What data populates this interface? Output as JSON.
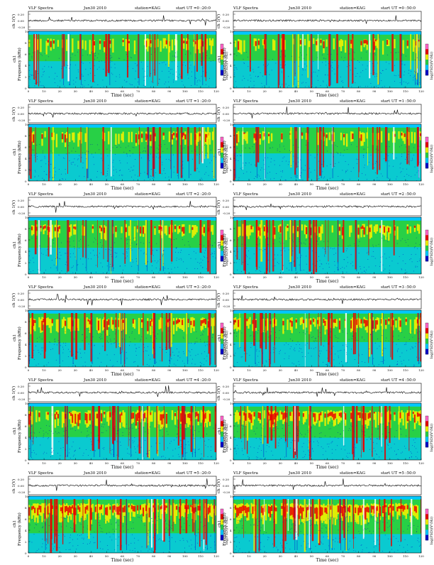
{
  "chart_data": [
    {
      "type": "heatmap",
      "header": {
        "title": "VLF Spectra",
        "date": "Jun30 2010",
        "station": "station=KAG",
        "start": "start  UT =0 :20:0"
      },
      "intensity": 0.42,
      "xlabel": "Time  (sec)",
      "ylabel": "Frequency  (kHz)",
      "waveform_label": "ch 1(V)",
      "channel": "ch1",
      "colorbar_label": "log(PSD)(V²/Hz)",
      "x_ticks": [
        "0",
        "10",
        "20",
        "30",
        "40",
        "50",
        "60",
        "70",
        "80",
        "90",
        "100",
        "110",
        "120"
      ],
      "y_ticks": [
        "0",
        "2",
        "4",
        "6",
        "8",
        "10"
      ],
      "wave_ticks": [
        "0.20",
        "0.00",
        "-0.20"
      ],
      "xlim": [
        0,
        120
      ],
      "ylim": [
        0,
        10
      ]
    },
    {
      "type": "heatmap",
      "header": {
        "title": "VLF Spectra",
        "date": "Jun30 2010",
        "station": "station=KAG",
        "start": "start  UT =0 :50:0"
      },
      "intensity": 0.4,
      "xlabel": "Time  (sec)",
      "ylabel": "Frequency  (kHz)",
      "waveform_label": "ch 1(V)",
      "channel": "ch1",
      "colorbar_label": "log(PSD)(V²/Hz)",
      "x_ticks": [
        "0",
        "10",
        "20",
        "30",
        "40",
        "50",
        "60",
        "70",
        "80",
        "90",
        "100",
        "110",
        "120"
      ],
      "y_ticks": [
        "0",
        "2",
        "4",
        "6",
        "8",
        "10"
      ],
      "wave_ticks": [
        "0.20",
        "0.00",
        "-0.20"
      ],
      "xlim": [
        0,
        120
      ],
      "ylim": [
        0,
        10
      ]
    },
    {
      "type": "heatmap",
      "header": {
        "title": "VLF Spectra",
        "date": "Jun30 2010",
        "station": "station=KAG",
        "start": "start  UT =1 :20:0"
      },
      "intensity": 0.4,
      "xlabel": "Time  (sec)",
      "ylabel": "Frequency  (kHz)",
      "waveform_label": "ch 1(V)",
      "channel": "ch1",
      "colorbar_label": "log(PSD)(V²/Hz)",
      "x_ticks": [
        "0",
        "10",
        "20",
        "30",
        "40",
        "50",
        "60",
        "70",
        "80",
        "90",
        "100",
        "110",
        "120"
      ],
      "y_ticks": [
        "0",
        "2",
        "4",
        "6",
        "8",
        "10"
      ],
      "wave_ticks": [
        "0.20",
        "0.00",
        "-0.20"
      ],
      "xlim": [
        0,
        120
      ],
      "ylim": [
        0,
        10
      ]
    },
    {
      "type": "heatmap",
      "header": {
        "title": "VLF Spectra",
        "date": "Jun30 2010",
        "station": "station=KAG",
        "start": "start  UT =1 :50:0"
      },
      "intensity": 0.38,
      "xlabel": "Time  (sec)",
      "ylabel": "Frequency  (kHz)",
      "waveform_label": "ch 1(V)",
      "channel": "ch1",
      "colorbar_label": "log(PSD)(V²/Hz)",
      "x_ticks": [
        "0",
        "10",
        "20",
        "30",
        "40",
        "50",
        "60",
        "70",
        "80",
        "90",
        "100",
        "110",
        "120"
      ],
      "y_ticks": [
        "0",
        "2",
        "4",
        "6",
        "8",
        "10"
      ],
      "wave_ticks": [
        "0.20",
        "0.00",
        "-0.20"
      ],
      "xlim": [
        0,
        120
      ],
      "ylim": [
        0,
        10
      ]
    },
    {
      "type": "heatmap",
      "header": {
        "title": "VLF Spectra",
        "date": "Jun30 2010",
        "station": "station=KAG",
        "start": "start  UT =2 :20:0"
      },
      "intensity": 0.45,
      "xlabel": "Time  (sec)",
      "ylabel": "Frequency  (kHz)",
      "waveform_label": "ch 1(V)",
      "channel": "ch1",
      "colorbar_label": "log(PSD)(V²/Hz)",
      "x_ticks": [
        "0",
        "10",
        "20",
        "30",
        "40",
        "50",
        "60",
        "70",
        "80",
        "90",
        "100",
        "110",
        "120"
      ],
      "y_ticks": [
        "0",
        "2",
        "4",
        "6",
        "8",
        "10"
      ],
      "wave_ticks": [
        "0.20",
        "0.00",
        "-0.20"
      ],
      "xlim": [
        0,
        120
      ],
      "ylim": [
        0,
        10
      ]
    },
    {
      "type": "heatmap",
      "header": {
        "title": "VLF Spectra",
        "date": "Jun30 2010",
        "station": "station=KAG",
        "start": "start  UT =2 :50:0"
      },
      "intensity": 0.42,
      "xlabel": "Time  (sec)",
      "ylabel": "Frequency  (kHz)",
      "waveform_label": "ch 1(V)",
      "channel": "ch1",
      "colorbar_label": "log(PSD)(V²/Hz)",
      "x_ticks": [
        "0",
        "10",
        "20",
        "30",
        "40",
        "50",
        "60",
        "70",
        "80",
        "90",
        "100",
        "110",
        "120"
      ],
      "y_ticks": [
        "0",
        "2",
        "4",
        "6",
        "8",
        "10"
      ],
      "wave_ticks": [
        "0.20",
        "0.00",
        "-0.20"
      ],
      "xlim": [
        0,
        120
      ],
      "ylim": [
        0,
        10
      ]
    },
    {
      "type": "heatmap",
      "header": {
        "title": "VLF Spectra",
        "date": "Jun30 2010",
        "station": "station=KAG",
        "start": "start  UT =3 :20:0"
      },
      "intensity": 0.55,
      "xlabel": "Time  (sec)",
      "ylabel": "Frequency  (kHz)",
      "waveform_label": "ch 1(V)",
      "channel": "ch1",
      "colorbar_label": "log(PSD)(V²/Hz)",
      "x_ticks": [
        "0",
        "10",
        "20",
        "30",
        "40",
        "50",
        "60",
        "70",
        "80",
        "90",
        "100",
        "110",
        "120"
      ],
      "y_ticks": [
        "0",
        "2",
        "4",
        "6",
        "8",
        "10"
      ],
      "wave_ticks": [
        "0.20",
        "0.00",
        "-0.20"
      ],
      "xlim": [
        0,
        120
      ],
      "ylim": [
        0,
        10
      ]
    },
    {
      "type": "heatmap",
      "header": {
        "title": "VLF Spectra",
        "date": "Jun30 2010",
        "station": "station=KAG",
        "start": "start  UT =3 :50:0"
      },
      "intensity": 0.52,
      "xlabel": "Time  (sec)",
      "ylabel": "Frequency  (kHz)",
      "waveform_label": "ch 1(V)",
      "channel": "ch1",
      "colorbar_label": "log(PSD)(V²/Hz)",
      "x_ticks": [
        "0",
        "10",
        "20",
        "30",
        "40",
        "50",
        "60",
        "70",
        "80",
        "90",
        "100",
        "110",
        "120"
      ],
      "y_ticks": [
        "0",
        "2",
        "4",
        "6",
        "8",
        "10"
      ],
      "wave_ticks": [
        "0.20",
        "0.00",
        "-0.20"
      ],
      "xlim": [
        0,
        120
      ],
      "ylim": [
        0,
        10
      ]
    },
    {
      "type": "heatmap",
      "header": {
        "title": "VLF Spectra",
        "date": "Jun30 2010",
        "station": "station=KAG",
        "start": "start  UT =4 :20:0"
      },
      "intensity": 0.62,
      "xlabel": "Time  (sec)",
      "ylabel": "Frequency  (kHz)",
      "waveform_label": "ch 1(V)",
      "channel": "ch1",
      "colorbar_label": "log(PSD)(V²/Hz)",
      "x_ticks": [
        "0",
        "10",
        "20",
        "30",
        "40",
        "50",
        "60",
        "70",
        "80",
        "90",
        "100",
        "110",
        "120"
      ],
      "y_ticks": [
        "0",
        "2",
        "4",
        "6",
        "8",
        "10"
      ],
      "wave_ticks": [
        "0.20",
        "0.00",
        "-0.20"
      ],
      "xlim": [
        0,
        120
      ],
      "ylim": [
        0,
        10
      ]
    },
    {
      "type": "heatmap",
      "header": {
        "title": "VLF Spectra",
        "date": "Jun30 2010",
        "station": "station=KAG",
        "start": "start  UT =4 :50:0"
      },
      "intensity": 0.65,
      "xlabel": "Time  (sec)",
      "ylabel": "Frequency  (kHz)",
      "waveform_label": "ch 1(V)",
      "channel": "ch1",
      "colorbar_label": "log(PSD)(V²/Hz)",
      "x_ticks": [
        "0",
        "10",
        "20",
        "30",
        "40",
        "50",
        "60",
        "70",
        "80",
        "90",
        "100",
        "110",
        "120"
      ],
      "y_ticks": [
        "0",
        "2",
        "4",
        "6",
        "8",
        "10"
      ],
      "wave_ticks": [
        "0.20",
        "0.00",
        "-0.20"
      ],
      "xlim": [
        0,
        120
      ],
      "ylim": [
        0,
        10
      ]
    },
    {
      "type": "heatmap",
      "header": {
        "title": "VLF Spectra",
        "date": "Jun30 2010",
        "station": "station=KAG",
        "start": "start  UT =5 :20:0"
      },
      "intensity": 0.78,
      "xlabel": "Time  (sec)",
      "ylabel": "Frequency  (kHz)",
      "waveform_label": "ch 1(V)",
      "channel": "ch1",
      "colorbar_label": "log(PSD)(V²/Hz)",
      "x_ticks": [
        "0",
        "10",
        "20",
        "30",
        "40",
        "50",
        "60",
        "70",
        "80",
        "90",
        "100",
        "110",
        "120"
      ],
      "y_ticks": [
        "0",
        "2",
        "4",
        "6",
        "8",
        "10"
      ],
      "wave_ticks": [
        "0.20",
        "0.00",
        "-0.20"
      ],
      "xlim": [
        0,
        120
      ],
      "ylim": [
        0,
        10
      ]
    },
    {
      "type": "heatmap",
      "header": {
        "title": "VLF Spectra",
        "date": "Jun30 2010",
        "station": "station=KAG",
        "start": "start  UT =5 :50:0"
      },
      "intensity": 0.82,
      "xlabel": "Time  (sec)",
      "ylabel": "Frequency  (kHz)",
      "waveform_label": "ch 1(V)",
      "channel": "ch1",
      "colorbar_label": "log(PSD)(V²/Hz)",
      "x_ticks": [
        "0",
        "10",
        "20",
        "30",
        "40",
        "50",
        "60",
        "70",
        "80",
        "90",
        "100",
        "110",
        "120"
      ],
      "y_ticks": [
        "0",
        "2",
        "4",
        "6",
        "8",
        "10"
      ],
      "wave_ticks": [
        "0.20",
        "0.00",
        "-0.20"
      ],
      "xlim": [
        0,
        120
      ],
      "ylim": [
        0,
        10
      ]
    }
  ],
  "colors": {
    "low": "#0000c8",
    "mid_low": "#00c8ff",
    "mid": "#28d046",
    "mid_high": "#f0f000",
    "high": "#e60000",
    "top": "#ff64c8"
  }
}
